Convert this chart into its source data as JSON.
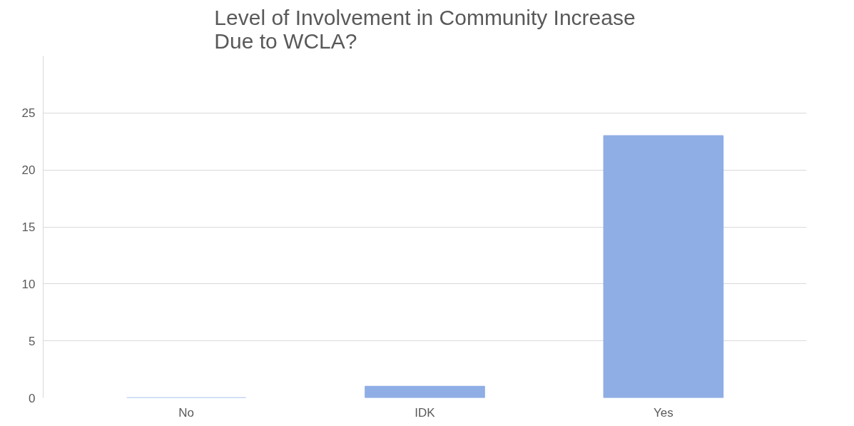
{
  "chart_data": {
    "type": "bar",
    "title": "Level of Involvement in Community Increase Due to WCLA?",
    "categories": [
      "No",
      "IDK",
      "Yes"
    ],
    "values": [
      0,
      1,
      23
    ],
    "color": "#8faee6",
    "ylim": [
      0,
      30
    ],
    "yticks": [
      0,
      5,
      10,
      15,
      20,
      25
    ],
    "grid": "y"
  }
}
